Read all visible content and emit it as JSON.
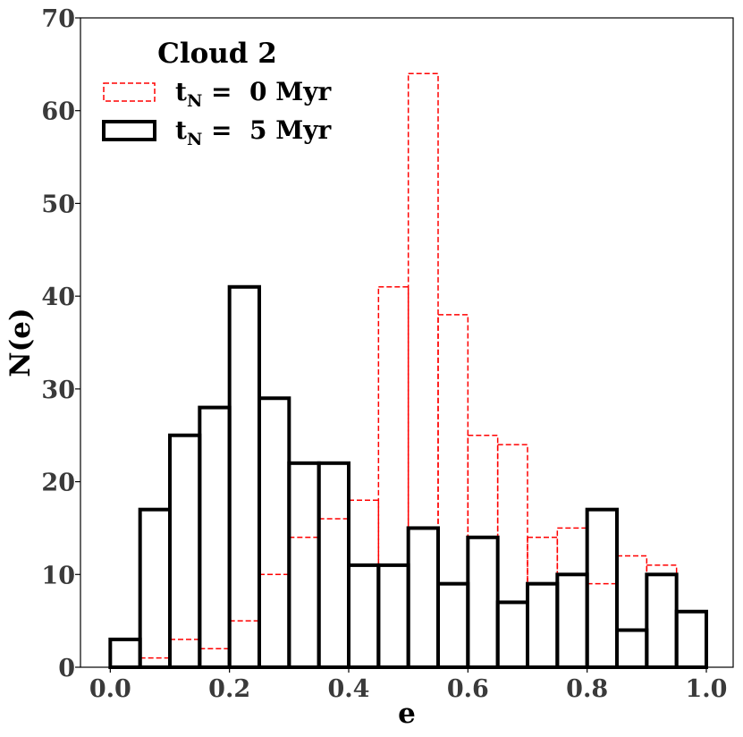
{
  "chart_data": {
    "type": "bar",
    "subtype": "step-histogram",
    "xlabel": "e",
    "ylabel": "N(e)",
    "xlim": [
      -0.05,
      1.045
    ],
    "ylim": [
      0,
      70
    ],
    "xticks": [
      "0.0",
      "0.2",
      "0.4",
      "0.6",
      "0.8",
      "1.0"
    ],
    "yticks": [
      "0",
      "10",
      "20",
      "30",
      "40",
      "50",
      "60",
      "70"
    ],
    "bin_edges": [
      0.0,
      0.05,
      0.1,
      0.15,
      0.2,
      0.25,
      0.3,
      0.35,
      0.4,
      0.45,
      0.5,
      0.55,
      0.6,
      0.65,
      0.7,
      0.75,
      0.8,
      0.85,
      0.9,
      0.95,
      1.0
    ],
    "grid": false,
    "legend": {
      "title": "Cloud 2",
      "position": "top-left",
      "entries": [
        {
          "main": "t",
          "sub": "N",
          "rest": " =  0 Myr"
        },
        {
          "main": "t",
          "sub": "N",
          "rest": " =  5 Myr"
        }
      ]
    },
    "series": [
      {
        "name": "tN = 0 Myr",
        "style": "dashed",
        "color": "#ff0000",
        "values": [
          0,
          1,
          3,
          2,
          5,
          10,
          14,
          16,
          18,
          41,
          64,
          38,
          25,
          24,
          14,
          15,
          9,
          12,
          11,
          6
        ]
      },
      {
        "name": "tN = 5 Myr",
        "style": "solid",
        "color": "#000000",
        "values": [
          3,
          17,
          25,
          28,
          41,
          29,
          22,
          22,
          11,
          11,
          15,
          9,
          14,
          7,
          9,
          10,
          17,
          4,
          10,
          6
        ]
      }
    ]
  }
}
